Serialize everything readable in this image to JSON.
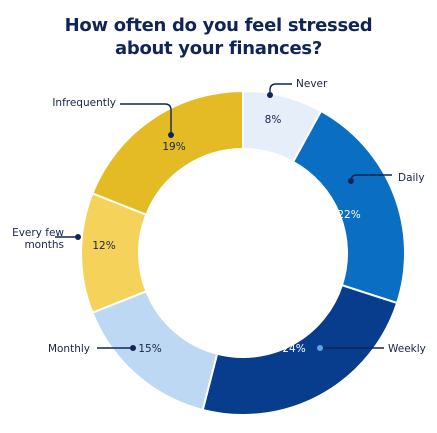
{
  "title_lines": [
    "How often do you feel stressed",
    "about your finances?"
  ],
  "chart_data": {
    "type": "pie",
    "subtype": "donut",
    "title": "How often do you feel stressed about your finances?",
    "categories": [
      "Never",
      "Daily",
      "Weekly",
      "Monthly",
      "Every few months",
      "Infrequently"
    ],
    "values": [
      8,
      22,
      24,
      15,
      12,
      19
    ],
    "unit": "%",
    "value_labels": [
      "8%",
      "22%",
      "24%",
      "15%",
      "12%",
      "19%"
    ],
    "colors": [
      "#e6eff9",
      "#0a6fc2",
      "#083c8c",
      "#bdd8f2",
      "#f5d35a",
      "#e4bb25"
    ],
    "label_colors": [
      "#1a2447",
      "#ffffff",
      "#ffffff",
      "#1a2447",
      "#1a2447",
      "#1a2447"
    ],
    "callout_lines": [
      [
        "Never"
      ],
      [
        "Daily"
      ],
      [
        "Weekly"
      ],
      [
        "Monthly"
      ],
      [
        "Every few",
        "months"
      ],
      [
        "Infrequently"
      ]
    ],
    "callout_color": "#0f2557",
    "legend": "callouts",
    "start": "top, clockwise"
  }
}
